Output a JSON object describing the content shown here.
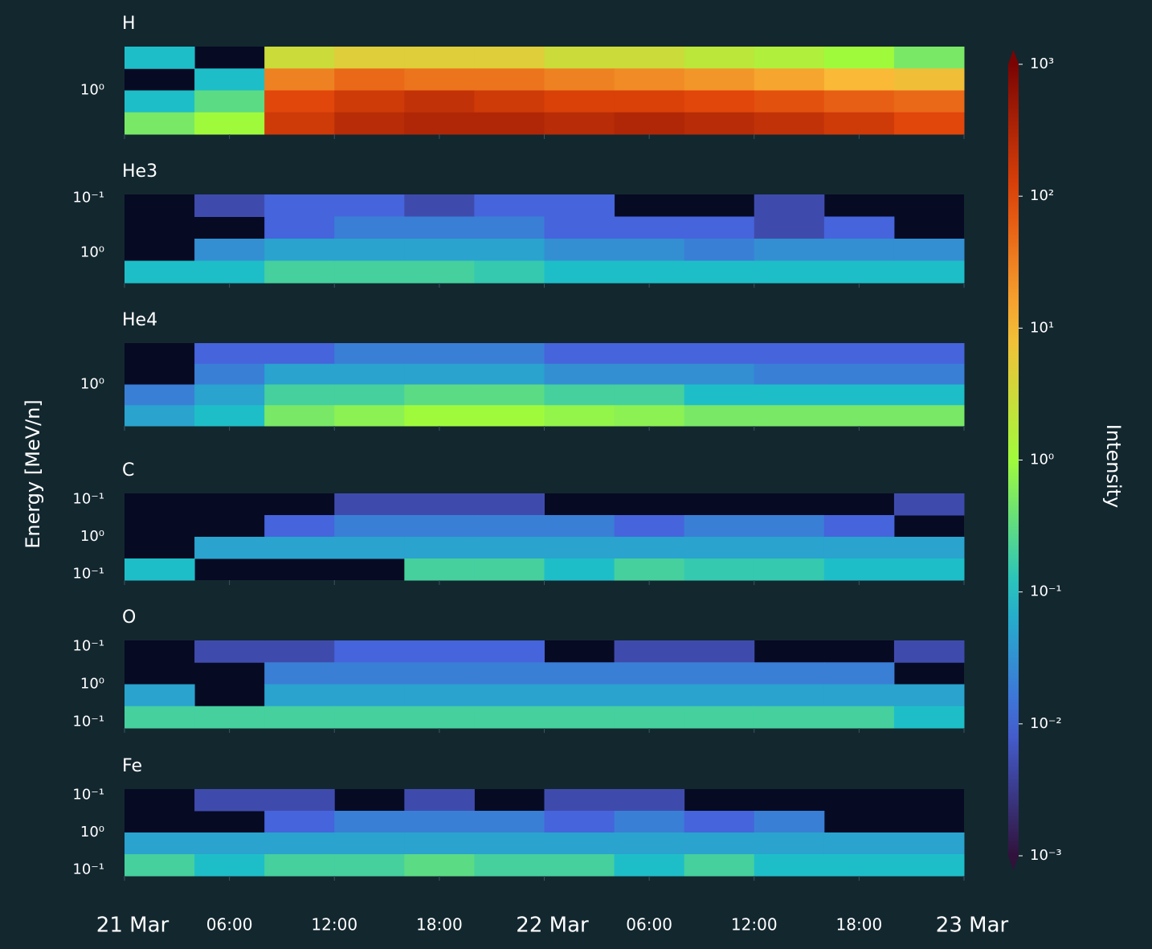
{
  "chart_data": {
    "type": "heatmap",
    "ylabel": "Energy [MeV/n]",
    "colorbar_label": "Intensity",
    "xlim": [
      0,
      48
    ],
    "xticks": [
      {
        "value": 0,
        "label": "21 Mar"
      },
      {
        "value": 6,
        "label": "06:00"
      },
      {
        "value": 12,
        "label": "12:00"
      },
      {
        "value": 18,
        "label": "18:00"
      },
      {
        "value": 24,
        "label": "22 Mar"
      },
      {
        "value": 30,
        "label": "06:00"
      },
      {
        "value": 36,
        "label": "12:00"
      },
      {
        "value": 42,
        "label": "18:00"
      },
      {
        "value": 48,
        "label": "23 Mar"
      }
    ],
    "x_bins": [
      0,
      4,
      8,
      12,
      16,
      20,
      24,
      28,
      32,
      36,
      40,
      44,
      48
    ],
    "clim": [
      0.001,
      1000
    ],
    "color_log_scale": true,
    "cticks": [
      {
        "value": 1000,
        "label": "10³"
      },
      {
        "value": 100,
        "label": "10²"
      },
      {
        "value": 10,
        "label": "10¹"
      },
      {
        "value": 1,
        "label": "10⁰"
      },
      {
        "value": 0.1,
        "label": "10⁻¹"
      },
      {
        "value": 0.01,
        "label": "10⁻²"
      },
      {
        "value": 0.001,
        "label": "10⁻³"
      }
    ],
    "panels": [
      {
        "title": "H",
        "ytick_labels": [
          "10⁰"
        ],
        "values": [
          [
            0.1,
            null,
            3,
            5,
            5,
            5,
            3,
            3,
            2,
            1.5,
            1,
            0.5
          ],
          [
            null,
            0.1,
            30,
            50,
            40,
            40,
            30,
            25,
            20,
            15,
            10,
            8
          ],
          [
            0.1,
            0.3,
            100,
            150,
            200,
            150,
            120,
            120,
            100,
            80,
            60,
            50
          ],
          [
            0.5,
            1,
            150,
            250,
            300,
            300,
            250,
            300,
            250,
            200,
            150,
            100
          ]
        ]
      },
      {
        "title": "He3",
        "ytick_labels": [
          "10⁻¹",
          "10⁰"
        ],
        "values": [
          [
            null,
            0.005,
            0.01,
            0.01,
            0.005,
            0.01,
            0.01,
            null,
            null,
            0.005,
            null,
            null
          ],
          [
            null,
            null,
            0.01,
            0.02,
            0.02,
            0.02,
            0.01,
            0.01,
            0.01,
            0.005,
            0.01,
            null
          ],
          [
            null,
            0.03,
            0.05,
            0.05,
            0.05,
            0.05,
            0.03,
            0.03,
            0.02,
            0.03,
            0.03,
            0.03
          ],
          [
            0.1,
            0.1,
            0.2,
            0.2,
            0.2,
            0.15,
            0.1,
            0.1,
            0.1,
            0.1,
            0.1,
            0.1
          ]
        ]
      },
      {
        "title": "He4",
        "ytick_labels": [
          "10⁰"
        ],
        "values": [
          [
            null,
            0.01,
            0.01,
            0.02,
            0.02,
            0.02,
            0.01,
            0.01,
            0.01,
            0.01,
            0.01,
            0.01
          ],
          [
            null,
            0.02,
            0.05,
            0.05,
            0.05,
            0.05,
            0.03,
            0.03,
            0.03,
            0.02,
            0.02,
            0.02
          ],
          [
            0.02,
            0.05,
            0.2,
            0.2,
            0.3,
            0.3,
            0.2,
            0.2,
            0.1,
            0.1,
            0.1,
            0.1
          ],
          [
            0.05,
            0.1,
            0.5,
            0.7,
            1,
            1,
            0.8,
            0.7,
            0.5,
            0.5,
            0.5,
            0.5
          ]
        ]
      },
      {
        "title": "C",
        "ytick_labels": [
          "10⁻¹",
          "10⁰",
          "10⁻¹"
        ],
        "values": [
          [
            null,
            null,
            null,
            0.005,
            0.005,
            0.005,
            null,
            null,
            null,
            null,
            null,
            0.005
          ],
          [
            null,
            null,
            0.01,
            0.02,
            0.02,
            0.02,
            0.02,
            0.01,
            0.02,
            0.02,
            0.01,
            null
          ],
          [
            null,
            0.05,
            0.05,
            0.05,
            0.05,
            0.05,
            0.05,
            0.05,
            0.05,
            0.05,
            0.05,
            0.05
          ],
          [
            0.1,
            null,
            null,
            null,
            0.2,
            0.2,
            0.1,
            0.2,
            0.15,
            0.15,
            0.1,
            0.1
          ]
        ]
      },
      {
        "title": "O",
        "ytick_labels": [
          "10⁻¹",
          "10⁰",
          "10⁻¹"
        ],
        "values": [
          [
            null,
            0.005,
            0.005,
            0.01,
            0.01,
            0.01,
            null,
            0.005,
            0.005,
            null,
            null,
            0.005
          ],
          [
            null,
            null,
            0.02,
            0.02,
            0.02,
            0.02,
            0.02,
            0.02,
            0.02,
            0.02,
            0.02,
            null
          ],
          [
            0.05,
            null,
            0.05,
            0.05,
            0.05,
            0.05,
            0.05,
            0.05,
            0.05,
            0.05,
            0.05,
            0.05
          ],
          [
            0.2,
            0.2,
            0.2,
            0.2,
            0.2,
            0.2,
            0.2,
            0.2,
            0.2,
            0.2,
            0.2,
            0.1
          ]
        ]
      },
      {
        "title": "Fe",
        "ytick_labels": [
          "10⁻¹",
          "10⁰",
          "10⁻¹"
        ],
        "values": [
          [
            null,
            0.005,
            0.005,
            null,
            0.005,
            null,
            0.005,
            0.005,
            null,
            null,
            null,
            null
          ],
          [
            null,
            null,
            0.01,
            0.02,
            0.02,
            0.02,
            0.01,
            0.02,
            0.01,
            0.02,
            null,
            null
          ],
          [
            0.05,
            0.05,
            0.05,
            0.05,
            0.05,
            0.05,
            0.05,
            0.05,
            0.05,
            0.05,
            0.05,
            0.05
          ],
          [
            0.2,
            0.1,
            0.2,
            0.2,
            0.3,
            0.2,
            0.2,
            0.1,
            0.2,
            0.1,
            0.1,
            0.1
          ]
        ]
      }
    ]
  }
}
